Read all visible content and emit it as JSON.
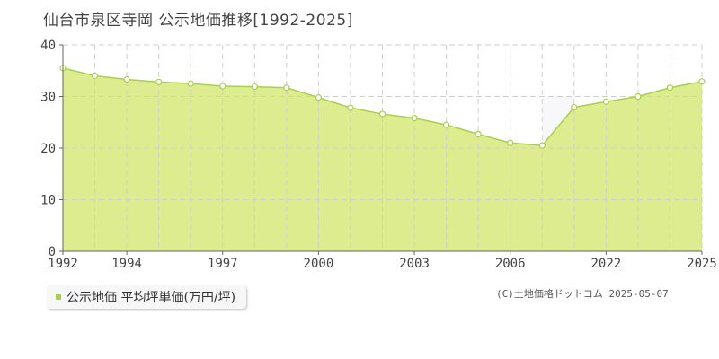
{
  "title": "仙台市泉区寺岡 公示地価推移[1992-2025]",
  "legend": {
    "label": "公示地価 平均坪単価(万円/坪)"
  },
  "copyright": "(C)土地価格ドットコム 2025-05-07",
  "colors": {
    "fill": "#dcec8e",
    "line": "#a8d050",
    "point_fill": "#ffffff",
    "grid": "#cfcfcf",
    "gap_fill": "#f8f8fa"
  },
  "chart_data": {
    "type": "area",
    "x": [
      1992,
      1993,
      1994,
      1995,
      1996,
      1997,
      1998,
      1999,
      2000,
      2001,
      2002,
      2003,
      2004,
      2005,
      2006,
      2007,
      2008,
      2009,
      2010,
      2011,
      2012,
      2013,
      2014,
      2015,
      2016,
      2017,
      2018,
      2019,
      2020,
      2021,
      2022,
      2023,
      2024,
      2025
    ],
    "series": [
      {
        "values": [
          35.5,
          34.0,
          33.3,
          32.8,
          32.5,
          32.0,
          31.9,
          31.7,
          29.8,
          27.8,
          26.6,
          25.8,
          24.5,
          22.7,
          21.0,
          20.5,
          null,
          null,
          null,
          null,
          null,
          null,
          null,
          null,
          null,
          null,
          null,
          null,
          null,
          null,
          null,
          null,
          null,
          null
        ]
      },
      {
        "values": [
          null,
          null,
          null,
          null,
          null,
          null,
          null,
          null,
          null,
          null,
          null,
          null,
          null,
          null,
          null,
          null,
          null,
          null,
          null,
          null,
          null,
          null,
          null,
          null,
          null,
          null,
          null,
          null,
          27.9,
          29.0,
          30.0,
          31.7,
          32.9,
          null
        ]
      }
    ],
    "data_x": [
      1992,
      1993,
      1994,
      1995,
      1996,
      1997,
      1998,
      1999,
      2000,
      2001,
      2002,
      2003,
      2004,
      2005,
      2006,
      2007,
      2008,
      2009,
      2010,
      2011,
      2012,
      2013,
      2014,
      2015,
      2016,
      2017,
      2018,
      2019,
      2020,
      2021,
      2022,
      2023,
      2024,
      2025
    ],
    "xticks": [
      1992,
      1994,
      1997,
      2000,
      2003,
      2006,
      2022,
      2025
    ],
    "yticks": [
      0,
      10,
      20,
      30,
      40
    ],
    "ylim": [
      0,
      40
    ],
    "grid": true,
    "legend_position": "bottom-left"
  }
}
